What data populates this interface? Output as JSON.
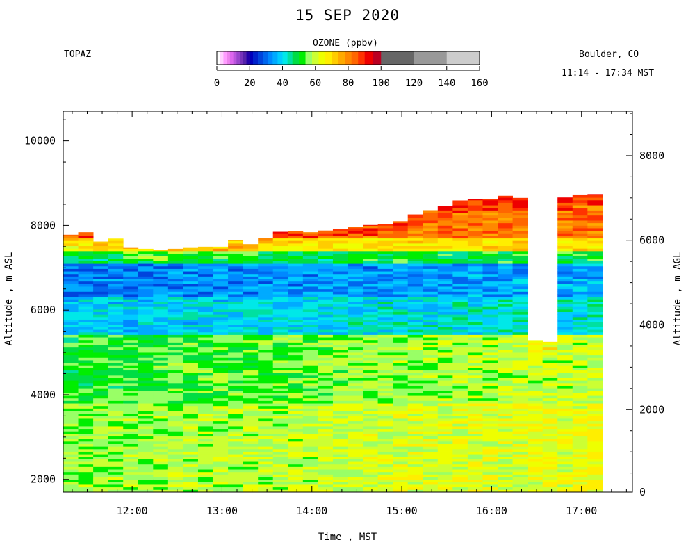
{
  "header": {
    "title": "15 SEP 2020",
    "station": "TOPAZ",
    "location": "Boulder, CO",
    "time_range": "11:14 - 17:34 MST"
  },
  "colorbar": {
    "title": "OZONE (ppbv)",
    "ticks": [
      "0",
      "20",
      "40",
      "60",
      "80",
      "100",
      "120",
      "140",
      "160"
    ],
    "range": [
      0,
      160
    ],
    "colors": [
      {
        "from": 0,
        "to": 2,
        "color": "#ffffff"
      },
      {
        "from": 2,
        "to": 4,
        "color": "#ffd0ff"
      },
      {
        "from": 4,
        "to": 6,
        "color": "#ff9cff"
      },
      {
        "from": 6,
        "to": 8,
        "color": "#ee82ee"
      },
      {
        "from": 8,
        "to": 10,
        "color": "#dd66ee"
      },
      {
        "from": 10,
        "to": 12,
        "color": "#bb55dd"
      },
      {
        "from": 12,
        "to": 14,
        "color": "#9944cc"
      },
      {
        "from": 14,
        "to": 16,
        "color": "#7733bb"
      },
      {
        "from": 16,
        "to": 18,
        "color": "#5522aa"
      },
      {
        "from": 18,
        "to": 20,
        "color": "#2200aa"
      },
      {
        "from": 20,
        "to": 22,
        "color": "#0000bb"
      },
      {
        "from": 22,
        "to": 25,
        "color": "#0022cc"
      },
      {
        "from": 25,
        "to": 28,
        "color": "#0044dd"
      },
      {
        "from": 28,
        "to": 31,
        "color": "#0066ee"
      },
      {
        "from": 31,
        "to": 34,
        "color": "#0088ff"
      },
      {
        "from": 34,
        "to": 37,
        "color": "#00aaff"
      },
      {
        "from": 37,
        "to": 40,
        "color": "#00ccff"
      },
      {
        "from": 40,
        "to": 43,
        "color": "#00e8e8"
      },
      {
        "from": 43,
        "to": 46,
        "color": "#00e0a0"
      },
      {
        "from": 46,
        "to": 50,
        "color": "#00dd44"
      },
      {
        "from": 50,
        "to": 54,
        "color": "#00ee00"
      },
      {
        "from": 54,
        "to": 58,
        "color": "#99ff66"
      },
      {
        "from": 58,
        "to": 62,
        "color": "#ccff33"
      },
      {
        "from": 62,
        "to": 66,
        "color": "#eeff00"
      },
      {
        "from": 66,
        "to": 70,
        "color": "#ffee00"
      },
      {
        "from": 70,
        "to": 74,
        "color": "#ffcc00"
      },
      {
        "from": 74,
        "to": 78,
        "color": "#ffaa00"
      },
      {
        "from": 78,
        "to": 82,
        "color": "#ff8800"
      },
      {
        "from": 82,
        "to": 86,
        "color": "#ff6600"
      },
      {
        "from": 86,
        "to": 90,
        "color": "#ff3300"
      },
      {
        "from": 90,
        "to": 95,
        "color": "#ee0000"
      },
      {
        "from": 95,
        "to": 100,
        "color": "#bb0022"
      },
      {
        "from": 100,
        "to": 120,
        "color": "#666666"
      },
      {
        "from": 120,
        "to": 140,
        "color": "#999999"
      },
      {
        "from": 140,
        "to": 160,
        "color": "#cccccc"
      }
    ]
  },
  "chart_data": {
    "type": "heatmap",
    "xlabel": "Time , MST",
    "ylabel_left": "Altitude , m ASL",
    "ylabel_right": "Altitude , m AGL",
    "x_ticks": [
      "12:00",
      "13:00",
      "14:00",
      "15:00",
      "16:00",
      "17:00"
    ],
    "y_ticks_left": [
      "2000",
      "4000",
      "6000",
      "8000",
      "10000"
    ],
    "y_ticks_right": [
      "0",
      "2000",
      "4000",
      "6000",
      "8000"
    ],
    "xlim": [
      "11:14",
      "17:34"
    ],
    "ylim": [
      1700,
      10700
    ],
    "surface_altitude_m_asl": 1650,
    "profile_interval_min": 10,
    "profile_start": "11:14",
    "top_altitude_m_asl": [
      7780,
      7840,
      7620,
      7690,
      7470,
      7450,
      7420,
      7450,
      7470,
      7500,
      7500,
      7650,
      7560,
      7700,
      7850,
      7870,
      7840,
      7880,
      7920,
      7960,
      8010,
      8030,
      8100,
      8260,
      8360,
      8460,
      8590,
      8630,
      8620,
      8700,
      8650,
      5290,
      5250,
      8660,
      8730,
      8740
    ],
    "profile_gaps": [
      32
    ],
    "profile_gap_top_altitude_m_asl": [
      5150
    ],
    "layers_ppbv": [
      {
        "from_m": 1700,
        "to_m": 3800,
        "ozone_early": 56,
        "ozone_late": 64
      },
      {
        "from_m": 3800,
        "to_m": 5400,
        "ozone_early": 51,
        "ozone_late": 60
      },
      {
        "from_m": 5400,
        "to_m": 6300,
        "ozone_early": 39,
        "ozone_late": 42
      },
      {
        "from_m": 6300,
        "to_m": 7100,
        "ozone_early": 31,
        "ozone_late": 36
      },
      {
        "from_m": 7100,
        "to_m": 7400,
        "ozone_early": 48,
        "ozone_late": 50
      },
      {
        "from_m": 7400,
        "to_m": 7700,
        "ozone_early": 66,
        "ozone_late": 70
      },
      {
        "from_m": 7700,
        "to_m": 8800,
        "ozone_early": 80,
        "ozone_late": 82
      }
    ]
  }
}
